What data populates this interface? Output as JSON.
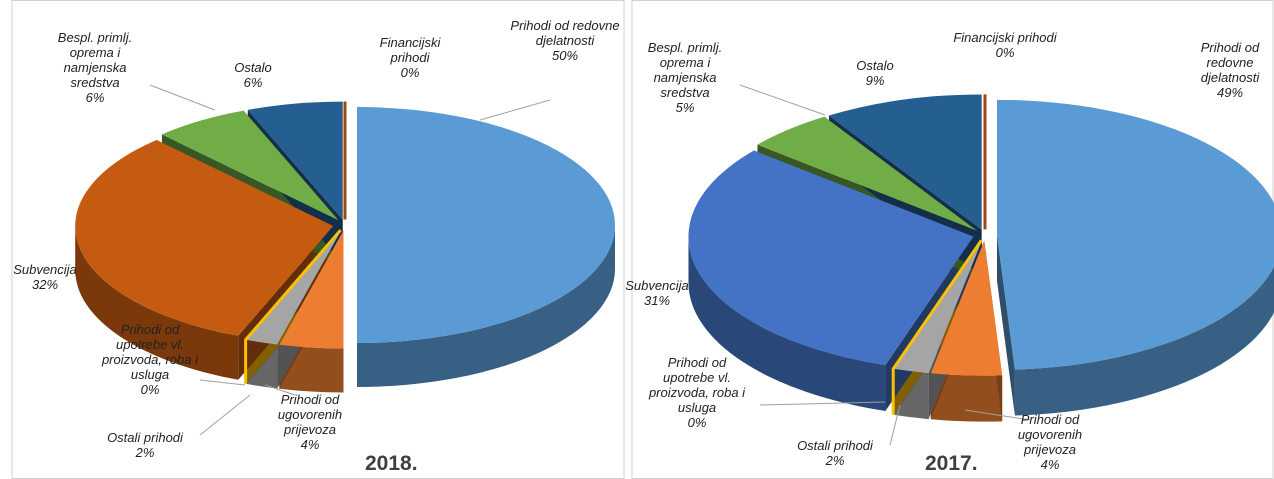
{
  "chart_data": [
    {
      "type": "pie",
      "title": "2018.",
      "categories": [
        "Prihodi od redovne djelatnosti",
        "Prihodi od ugovorenih prijevoza",
        "Ostali prihodi",
        "Prihodi od upotrebe vl. proizvoda, roba i usluga",
        "Subvencija",
        "Bespl. primlj. oprema i namjenska sredstva",
        "Ostalo",
        "Financijski prihodi"
      ],
      "values": [
        50,
        4,
        2,
        0,
        32,
        6,
        6,
        0
      ],
      "value_labels": [
        "50%",
        "4%",
        "2%",
        "0%",
        "32%",
        "6%",
        "6%",
        "0%"
      ],
      "colors": [
        "#5b9bd5",
        "#ed7d31",
        "#a5a5a5",
        "#ffc000",
        "#c55a11",
        "#70ad47",
        "#255e91",
        "#9e480e"
      ]
    },
    {
      "type": "pie",
      "title": "2017.",
      "categories": [
        "Prihodi od redovne djelatnosti",
        "Prihodi od ugovorenih prijevoza",
        "Ostali prihodi",
        "Prihodi od upotrebe vl. proizvoda, roba i usluga",
        "Subvencija",
        "Bespl. primlj. oprema i namjenska sredstva",
        "Ostalo",
        "Financijski prihodi"
      ],
      "values": [
        49,
        4,
        2,
        0,
        31,
        5,
        9,
        0
      ],
      "value_labels": [
        "49%",
        "4%",
        "2%",
        "0%",
        "31%",
        "5%",
        "9%",
        "0%"
      ],
      "colors": [
        "#5b9bd5",
        "#ed7d31",
        "#a5a5a5",
        "#ffc000",
        "#4472c4",
        "#70ad47",
        "#255e91",
        "#9e480e"
      ]
    }
  ]
}
